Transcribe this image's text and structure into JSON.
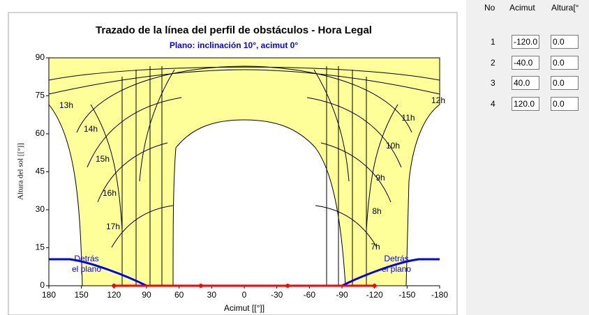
{
  "chart_data": {
    "type": "scatter",
    "title": "Trazado de la línea del perfil de obstáculos - Hora Legal",
    "subtitle": "Plano: inclinación 10°, acimut 0°",
    "x_label": "Acimut [[°]]",
    "y_label": "Altura del sol [[°]]",
    "xlim": [
      180,
      -180
    ],
    "ylim": [
      0,
      90
    ],
    "xticks": [
      180,
      150,
      120,
      90,
      60,
      30,
      0,
      -30,
      -60,
      -90,
      -120,
      -150,
      -180
    ],
    "yticks": [
      0,
      15,
      30,
      45,
      60,
      75,
      90
    ],
    "grid": false,
    "color": "#ff0000",
    "x": [
      120,
      40,
      -40,
      -120
    ],
    "values": [
      0,
      0,
      0,
      0
    ],
    "hour_labels": [
      "13h",
      "14h",
      "15h",
      "16h",
      "17h",
      "12h",
      "11h",
      "10h",
      "9h",
      "8h",
      "7h"
    ],
    "behind_label": [
      "Detrás",
      "el plano"
    ]
  },
  "table": {
    "headers": [
      "No",
      "Acimut",
      "Altura[°"
    ],
    "rows": [
      [
        "1",
        "-120.0",
        "0.0"
      ],
      [
        "2",
        "-40.0",
        "0.0"
      ],
      [
        "3",
        "40.0",
        "0.0"
      ],
      [
        "4",
        "120.0",
        "0.0"
      ]
    ]
  }
}
